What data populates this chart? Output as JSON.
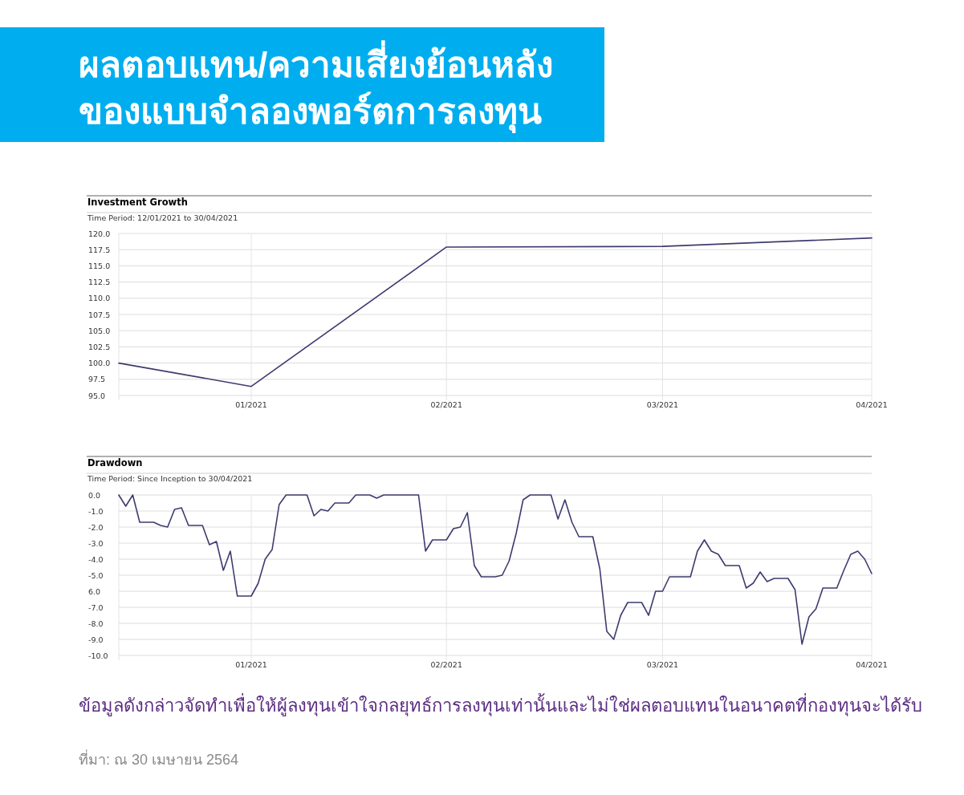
{
  "chart_data": [
    {
      "type": "other",
      "title": "ผลตอบแทน/ความเสี่ยงย้อนหลังของแบบจำลองพอร์ตการลงทุน",
      "annotations": [
        "ข้อมูลดังกล่าวจัดทำเพื่อให้ผู้ลงทุนเข้าใจกลยุทธ์การลงทุนเท่านั้นและไม่ใช่ผลตอบแทนในอนาคตที่กองทุนจะได้รับ",
        "ที่มา: ณ 30 เมษายน 2564"
      ]
    },
    {
      "type": "line",
      "title": "Investment Growth",
      "subtitle": "Time Period: 12/01/2021 to 30/04/2021",
      "grid": true,
      "xlim": [
        "2021-01-12",
        "2021-04-30"
      ],
      "xticks": [
        {
          "value": "2021-01-31",
          "label": "01/2021"
        },
        {
          "value": "2021-02-28",
          "label": "02/2021"
        },
        {
          "value": "2021-03-31",
          "label": "03/2021"
        },
        {
          "value": "2021-04-30",
          "label": "04/2021"
        }
      ],
      "ylim": [
        95,
        120
      ],
      "yticks": [
        {
          "value": 95,
          "label": "95.0"
        },
        {
          "value": 97.5,
          "label": "97.5"
        },
        {
          "value": 100,
          "label": "100.0"
        },
        {
          "value": 102.5,
          "label": "102.5"
        },
        {
          "value": 105,
          "label": "105.0"
        },
        {
          "value": 107.5,
          "label": "107.5"
        },
        {
          "value": 110,
          "label": "110.0"
        },
        {
          "value": 112.5,
          "label": "112.5"
        },
        {
          "value": 115,
          "label": "115.0"
        },
        {
          "value": 117.5,
          "label": "117.5"
        },
        {
          "value": 120,
          "label": "120.0"
        }
      ],
      "series": [
        {
          "color": "#3d3b6e",
          "x": [
            "2021-01-12",
            "2021-01-31",
            "2021-02-28",
            "2021-03-31",
            "2021-04-30"
          ],
          "values": [
            100.0,
            96.4,
            117.9,
            118.0,
            119.3
          ]
        }
      ]
    },
    {
      "type": "line",
      "title": "Drawdown",
      "subtitle": "Time Period: Since Inception to 30/04/2021",
      "grid": true,
      "xlim": [
        "2021-01-12",
        "2021-04-30"
      ],
      "xticks": [
        {
          "value": "2021-01-31",
          "label": "01/2021"
        },
        {
          "value": "2021-02-28",
          "label": "02/2021"
        },
        {
          "value": "2021-03-31",
          "label": "03/2021"
        },
        {
          "value": "2021-04-30",
          "label": "04/2021"
        }
      ],
      "ylim": [
        -10,
        0
      ],
      "yticks": [
        {
          "value": 0,
          "label": "0.0"
        },
        {
          "value": -1,
          "label": "-1.0"
        },
        {
          "value": -2,
          "label": "-2.0"
        },
        {
          "value": -3,
          "label": "-3.0"
        },
        {
          "value": -4,
          "label": "-4.0"
        },
        {
          "value": -5,
          "label": "-5.0"
        },
        {
          "value": -6,
          "label": "6.0"
        },
        {
          "value": -7,
          "label": "-7.0"
        },
        {
          "value": -8,
          "label": "-8.0"
        },
        {
          "value": -9,
          "label": "-9.0"
        },
        {
          "value": -10,
          "label": "-10.0"
        }
      ],
      "series": [
        {
          "color": "#3d3b6e",
          "x": [
            "2021-01-12",
            "2021-01-13",
            "2021-01-14",
            "2021-01-15",
            "2021-01-17",
            "2021-01-18",
            "2021-01-19",
            "2021-01-20",
            "2021-01-21",
            "2021-01-22",
            "2021-01-24",
            "2021-01-25",
            "2021-01-26",
            "2021-01-27",
            "2021-01-28",
            "2021-01-29",
            "2021-01-31",
            "2021-02-01",
            "2021-02-02",
            "2021-02-03",
            "2021-02-04",
            "2021-02-05",
            "2021-02-08",
            "2021-02-09",
            "2021-02-10",
            "2021-02-11",
            "2021-02-12",
            "2021-02-14",
            "2021-02-15",
            "2021-02-17",
            "2021-02-18",
            "2021-02-19",
            "2021-02-24",
            "2021-02-25",
            "2021-02-26",
            "2021-02-28",
            "2021-03-01",
            "2021-03-02",
            "2021-03-03",
            "2021-03-04",
            "2021-03-05",
            "2021-03-07",
            "2021-03-08",
            "2021-03-09",
            "2021-03-10",
            "2021-03-11",
            "2021-03-12",
            "2021-03-15",
            "2021-03-16",
            "2021-03-17",
            "2021-03-18",
            "2021-03-19",
            "2021-03-21",
            "2021-03-22",
            "2021-03-23",
            "2021-03-24",
            "2021-03-25",
            "2021-03-26",
            "2021-03-28",
            "2021-03-29",
            "2021-03-30",
            "2021-03-31",
            "2021-04-01",
            "2021-04-04",
            "2021-04-05",
            "2021-04-06",
            "2021-04-07",
            "2021-04-08",
            "2021-04-09",
            "2021-04-11",
            "2021-04-12",
            "2021-04-13",
            "2021-04-14",
            "2021-04-15",
            "2021-04-16",
            "2021-04-18",
            "2021-04-19",
            "2021-04-20",
            "2021-04-21",
            "2021-04-22",
            "2021-04-23",
            "2021-04-25",
            "2021-04-26",
            "2021-04-27",
            "2021-04-28",
            "2021-04-29",
            "2021-04-30"
          ],
          "values": [
            0,
            -0.7,
            0,
            -1.7,
            -1.7,
            -1.9,
            -2.0,
            -0.9,
            -0.8,
            -1.9,
            -1.9,
            -3.1,
            -2.9,
            -4.7,
            -3.5,
            -6.3,
            -6.3,
            -5.5,
            -4.0,
            -3.4,
            -0.6,
            0,
            0,
            -1.3,
            -0.9,
            -1.0,
            -0.5,
            -0.5,
            0,
            0,
            -0.2,
            0,
            0,
            -3.5,
            -2.8,
            -2.8,
            -2.1,
            -2.0,
            -1.1,
            -4.4,
            -5.1,
            -5.1,
            -5.0,
            -4.1,
            -2.4,
            -0.3,
            0,
            0,
            -1.5,
            -0.3,
            -1.7,
            -2.6,
            -2.6,
            -4.6,
            -8.5,
            -9.0,
            -7.5,
            -6.7,
            -6.7,
            -7.5,
            -6.0,
            -6.0,
            -5.1,
            -5.1,
            -3.5,
            -2.8,
            -3.5,
            -3.7,
            -4.4,
            -4.4,
            -5.8,
            -5.5,
            -4.8,
            -5.4,
            -5.2,
            -5.2,
            -5.9,
            -9.3,
            -7.6,
            -7.1,
            -5.8,
            -5.8,
            -4.7,
            -3.7,
            -3.5,
            -4.0,
            -4.9
          ]
        }
      ]
    }
  ]
}
